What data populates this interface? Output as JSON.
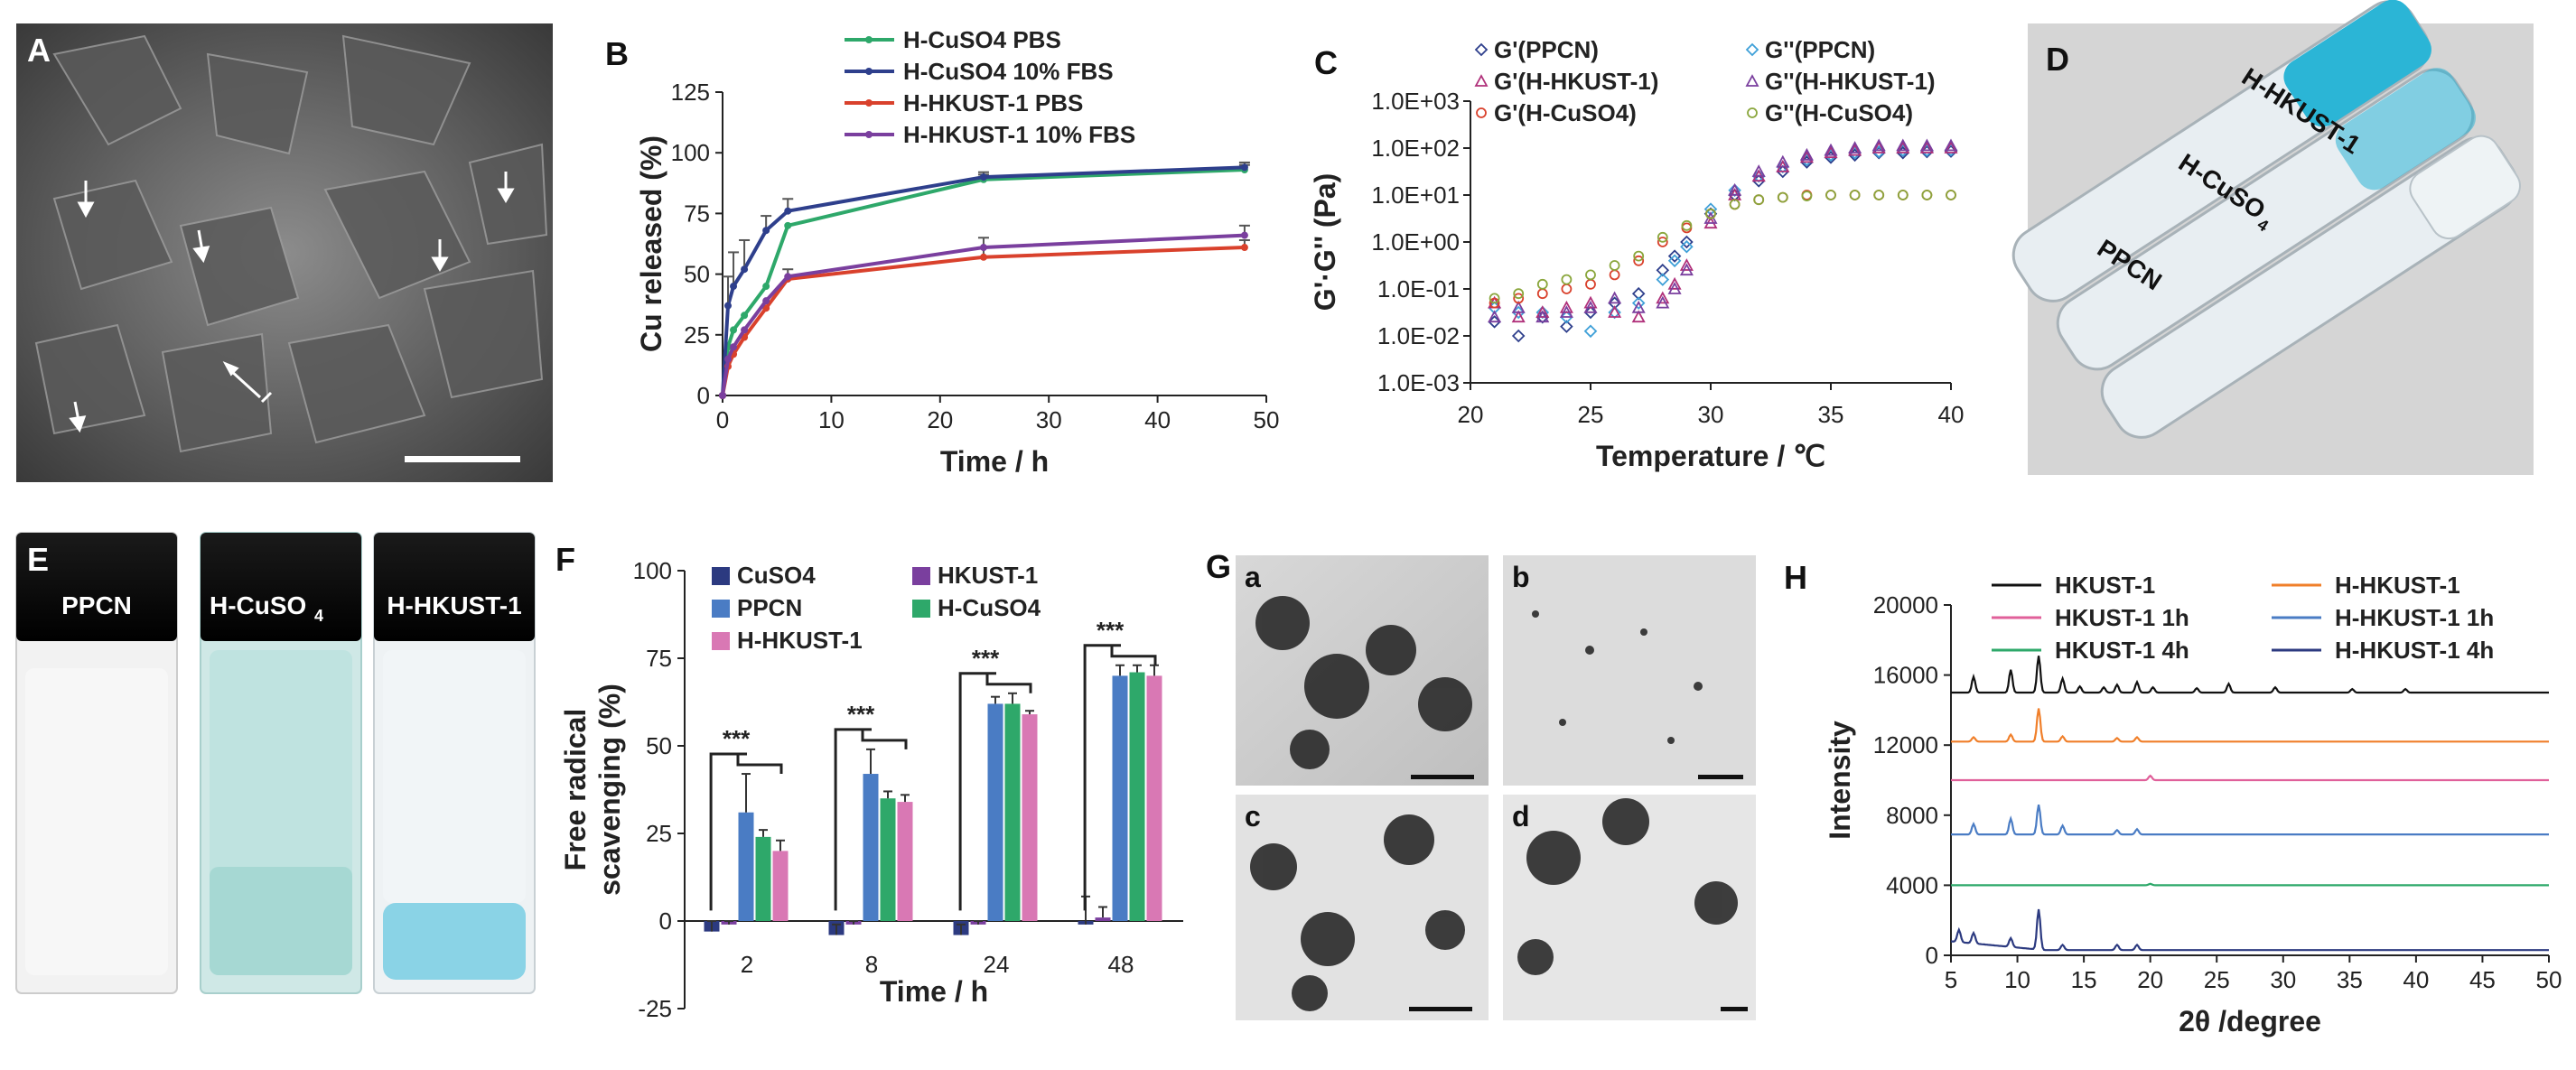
{
  "figure": {
    "panel_letters": [
      "A",
      "B",
      "C",
      "D",
      "E",
      "F",
      "G",
      "H"
    ],
    "panelA": {
      "letter": "A"
    },
    "panelD": {
      "letter": "D",
      "labels": [
        "H-HKUST-1",
        "H-CuSO",
        "4",
        "PPCN"
      ]
    },
    "panelE": {
      "letter": "E",
      "labels": [
        "PPCN",
        "H-CuSO",
        "4",
        "H-HKUST-1"
      ]
    },
    "panelG": {
      "letter": "G",
      "sub_labels": [
        "a",
        "b",
        "c",
        "d"
      ]
    }
  },
  "chart_data": [
    {
      "id": "B",
      "type": "line",
      "title": "",
      "xlabel": "Time / h",
      "ylabel": "Cu released (%)",
      "xlim": [
        0,
        50
      ],
      "ylim": [
        0,
        125
      ],
      "xticks": [
        0,
        10,
        20,
        30,
        40,
        50
      ],
      "yticks": [
        0,
        25,
        50,
        75,
        100,
        125
      ],
      "x": [
        0,
        0.5,
        1,
        2,
        4,
        6,
        24,
        48
      ],
      "series": [
        {
          "name": "H-CuSO4 PBS",
          "color": "#2ea86a",
          "values": [
            0,
            20,
            27,
            33,
            45,
            70,
            89,
            93
          ],
          "err": [
            0,
            0,
            0,
            0,
            0,
            0,
            2,
            2
          ]
        },
        {
          "name": "H-CuSO4 10% FBS",
          "color": "#2e3f8c",
          "values": [
            0,
            37,
            45,
            52,
            68,
            76,
            90,
            94
          ],
          "err": [
            0,
            12,
            14,
            12,
            6,
            5,
            2,
            2
          ]
        },
        {
          "name": "H-HKUST-1 PBS",
          "color": "#d9412c",
          "values": [
            0,
            12,
            17,
            24,
            36,
            48,
            57,
            61
          ],
          "err": [
            0,
            0,
            0,
            0,
            0,
            0,
            4,
            3
          ]
        },
        {
          "name": "H-HKUST-1 10% FBS",
          "color": "#7a3f9e",
          "values": [
            0,
            15,
            20,
            27,
            39,
            49,
            61,
            66
          ],
          "err": [
            0,
            0,
            0,
            0,
            0,
            3,
            4,
            4
          ]
        }
      ]
    },
    {
      "id": "C",
      "type": "scatter",
      "title": "",
      "xlabel": "Temperature / ℃",
      "ylabel": "G'·G'' (Pa)",
      "xlim": [
        20,
        40
      ],
      "ylim_log10": [
        -3,
        3
      ],
      "xticks": [
        20,
        25,
        30,
        35,
        40
      ],
      "yticks": [
        "1.0E-03",
        "1.0E-02",
        "1.0E-01",
        "1.0E+00",
        "1.0E+01",
        "1.0E+02",
        "1.0E+03"
      ],
      "series": [
        {
          "name": "G'(PPCN)",
          "color": "#2e3f8c",
          "marker": "diamond",
          "x": [
            21,
            22,
            23,
            24,
            25,
            26,
            27,
            28,
            28.5,
            29,
            30,
            31,
            32,
            33,
            34,
            35,
            36,
            37,
            38,
            39,
            40
          ],
          "log10": [
            -1.7,
            -2.0,
            -1.6,
            -1.8,
            -1.5,
            -1.3,
            -1.1,
            -0.6,
            -0.3,
            0.0,
            0.6,
            1.0,
            1.3,
            1.5,
            1.7,
            1.8,
            1.85,
            1.9,
            1.9,
            1.92,
            1.93
          ]
        },
        {
          "name": "G''(PPCN)",
          "color": "#3fa0d8",
          "marker": "diamond",
          "x": [
            21,
            22,
            23,
            24,
            25,
            26,
            27,
            28,
            28.5,
            29,
            30,
            31,
            32,
            33,
            34,
            35,
            36,
            37,
            38,
            39,
            40
          ],
          "log10": [
            -1.4,
            -1.5,
            -1.5,
            -1.6,
            -1.9,
            -1.5,
            -1.3,
            -0.8,
            -0.4,
            -0.1,
            0.7,
            1.1,
            1.4,
            1.6,
            1.75,
            1.85,
            1.9,
            1.92,
            1.95,
            1.95,
            1.96
          ]
        },
        {
          "name": "G'(H-HKUST-1)",
          "color": "#b0307a",
          "marker": "triangle",
          "x": [
            21,
            22,
            23,
            24,
            25,
            26,
            27,
            28,
            28.5,
            29,
            30,
            31,
            32,
            33,
            34,
            35,
            36,
            37,
            38,
            39,
            40
          ],
          "log10": [
            -1.3,
            -1.6,
            -1.5,
            -1.4,
            -1.3,
            -1.5,
            -1.6,
            -1.2,
            -0.9,
            -0.5,
            0.4,
            1.0,
            1.4,
            1.6,
            1.8,
            1.9,
            1.95,
            2.0,
            2.0,
            2.0,
            2.0
          ]
        },
        {
          "name": "G''(H-HKUST-1)",
          "color": "#7a3f9e",
          "marker": "triangle",
          "x": [
            21,
            22,
            23,
            24,
            25,
            26,
            27,
            28,
            28.5,
            29,
            30,
            31,
            32,
            33,
            34,
            35,
            36,
            37,
            38,
            39,
            40
          ],
          "log10": [
            -1.6,
            -1.4,
            -1.6,
            -1.5,
            -1.4,
            -1.2,
            -1.4,
            -1.3,
            -1.0,
            -0.6,
            0.5,
            1.1,
            1.5,
            1.7,
            1.85,
            1.95,
            2.0,
            2.05,
            2.05,
            2.05,
            2.05
          ]
        },
        {
          "name": "G'(H-CuSO4)",
          "color": "#d9412c",
          "marker": "circle",
          "x": [
            21,
            22,
            23,
            24,
            25,
            26,
            27,
            28,
            29,
            30,
            31,
            32,
            33,
            34,
            35,
            36,
            37,
            38,
            39,
            40
          ],
          "log10": [
            -1.3,
            -1.2,
            -1.1,
            -1.0,
            -0.9,
            -0.7,
            -0.4,
            0.0,
            0.3,
            0.6,
            0.8,
            0.9,
            0.95,
            1.0,
            1.0,
            1.0,
            1.0,
            1.0,
            1.0,
            1.0
          ]
        },
        {
          "name": "G''(H-CuSO4)",
          "color": "#8aa63c",
          "marker": "circle",
          "x": [
            21,
            22,
            23,
            24,
            25,
            26,
            27,
            28,
            29,
            30,
            31,
            32,
            33,
            34,
            35,
            36,
            37,
            38,
            39,
            40
          ],
          "log10": [
            -1.2,
            -1.1,
            -0.9,
            -0.8,
            -0.7,
            -0.5,
            -0.3,
            0.1,
            0.35,
            0.6,
            0.8,
            0.9,
            0.95,
            0.98,
            1.0,
            1.0,
            1.0,
            1.0,
            1.0,
            1.0
          ]
        }
      ]
    },
    {
      "id": "F",
      "type": "bar",
      "title": "",
      "xlabel": "Time / h",
      "ylabel": "Free radical scavenging (%)",
      "ylim": [
        -25,
        100
      ],
      "yticks": [
        -25,
        0,
        25,
        50,
        75,
        100
      ],
      "categories": [
        "2",
        "8",
        "24",
        "48"
      ],
      "series": [
        {
          "name": "CuSO4",
          "color": "#2c3a80",
          "values": [
            -3,
            -4,
            -4,
            -1
          ],
          "err": [
            3,
            3,
            3,
            8
          ]
        },
        {
          "name": "HKUST-1",
          "color": "#7a3f9e",
          "values": [
            -1,
            -1,
            -1,
            1
          ],
          "err": [
            1,
            1,
            1,
            3
          ]
        },
        {
          "name": "PPCN",
          "color": "#4a7cc4",
          "values": [
            31,
            42,
            62,
            70
          ],
          "err": [
            11,
            7,
            2,
            3
          ]
        },
        {
          "name": "H-CuSO4",
          "color": "#2ea86a",
          "values": [
            24,
            35,
            62,
            71
          ],
          "err": [
            2,
            2,
            3,
            2
          ]
        },
        {
          "name": "H-HKUST-1",
          "color": "#d978b4",
          "values": [
            20,
            34,
            59,
            70
          ],
          "err": [
            3,
            2,
            1,
            3
          ]
        }
      ],
      "annotations": [
        "***",
        "***",
        "***",
        "***"
      ]
    },
    {
      "id": "H",
      "type": "line",
      "title": "",
      "xlabel": "2θ /degree",
      "ylabel": "Intensity",
      "xlim": [
        5,
        50
      ],
      "ylim": [
        0,
        20000
      ],
      "xticks": [
        5,
        10,
        15,
        20,
        25,
        30,
        35,
        40,
        45,
        50
      ],
      "yticks": [
        0,
        4000,
        8000,
        12000,
        16000,
        20000
      ],
      "series": [
        {
          "name": "HKUST-1",
          "color": "#111111",
          "offset": 15000,
          "peaks": [
            [
              6.7,
              900
            ],
            [
              9.5,
              1300
            ],
            [
              11.6,
              2100
            ],
            [
              13.4,
              800
            ],
            [
              14.7,
              350
            ],
            [
              16.5,
              300
            ],
            [
              17.5,
              450
            ],
            [
              19.0,
              600
            ],
            [
              20.2,
              300
            ],
            [
              23.5,
              250
            ],
            [
              25.9,
              500
            ],
            [
              29.4,
              300
            ],
            [
              35.2,
              200
            ],
            [
              39.2,
              200
            ]
          ]
        },
        {
          "name": "H-HKUST-1",
          "color": "#f07f2a",
          "offset": 12200,
          "peaks": [
            [
              6.7,
              250
            ],
            [
              9.5,
              400
            ],
            [
              11.6,
              1900
            ],
            [
              13.4,
              300
            ],
            [
              17.5,
              200
            ],
            [
              19.0,
              250
            ]
          ]
        },
        {
          "name": "HKUST-1 1h",
          "color": "#e0609a",
          "offset": 10000,
          "peaks": [
            [
              20.0,
              250
            ]
          ]
        },
        {
          "name": "H-HKUST-1 1h",
          "color": "#4a7cc4",
          "offset": 6900,
          "peaks": [
            [
              6.7,
              600
            ],
            [
              9.5,
              900
            ],
            [
              11.6,
              1700
            ],
            [
              13.4,
              500
            ],
            [
              17.5,
              250
            ],
            [
              19.0,
              300
            ]
          ]
        },
        {
          "name": "HKUST-1 4h",
          "color": "#2ea86a",
          "offset": 4000,
          "peaks": [
            [
              20.0,
              80
            ]
          ]
        },
        {
          "name": "H-HKUST-1 4h",
          "color": "#2c3a80",
          "offset": 300,
          "peaks": [
            [
              5.6,
              700
            ],
            [
              6.7,
              600
            ],
            [
              9.5,
              500
            ],
            [
              11.6,
              2300
            ],
            [
              13.4,
              300
            ],
            [
              17.5,
              300
            ],
            [
              19.0,
              300
            ]
          ]
        }
      ]
    }
  ]
}
